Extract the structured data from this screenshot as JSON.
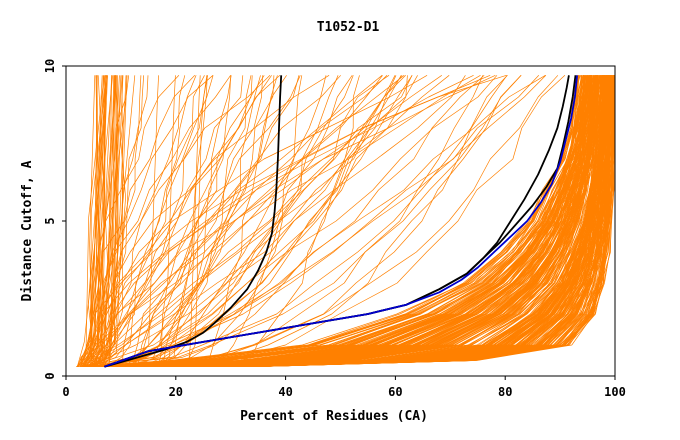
{
  "chart_data": {
    "type": "line",
    "title": "T1052-D1",
    "xlabel": "Percent of Residues (CA)",
    "ylabel": "Distance Cutoff, A",
    "xlim": [
      0,
      100
    ],
    "ylim": [
      0,
      10
    ],
    "x_ticks": [
      "0",
      "20",
      "40",
      "60",
      "80",
      "100"
    ],
    "y_ticks": [
      "0",
      "5",
      "10"
    ],
    "colors": {
      "background_models": "#ff8000",
      "highlight_black": "#000000",
      "highlight_blue": "#0000cc"
    },
    "band_models": {
      "count": 340,
      "color": "#ff8000",
      "note": "dense cloud of GDT curves from ~2% to ~100% residues",
      "cutoff_levels": [
        0.3,
        0.5,
        1,
        2,
        3,
        4,
        5,
        6,
        7,
        8,
        9,
        9.7
      ],
      "x_lower_envelope": [
        2,
        18,
        42,
        60,
        72,
        79,
        84,
        87,
        90,
        91.5,
        92.5,
        93
      ],
      "x_upper_envelope": [
        35,
        75,
        92,
        96.5,
        98,
        98.8,
        99.2,
        99.5,
        99.6,
        99.7,
        99.8,
        99.8
      ]
    },
    "spread_models": {
      "count": 80,
      "color": "#ff8000",
      "x_at_cutoff_0_3": [
        3,
        30
      ],
      "x_at_cutoff_9_7": [
        5,
        92
      ]
    },
    "series": [
      {
        "name": "model-black-1",
        "color": "#000000",
        "x": [
          7,
          10,
          14,
          18,
          22,
          25,
          27,
          30,
          33,
          35,
          36.5,
          37.5,
          38,
          38.3,
          38.6,
          38.8,
          39,
          39.2
        ],
        "y": [
          0.3,
          0.45,
          0.65,
          0.85,
          1.1,
          1.4,
          1.7,
          2.2,
          2.8,
          3.4,
          4.0,
          4.6,
          5.3,
          6.0,
          7.0,
          8.0,
          9.0,
          9.7
        ]
      },
      {
        "name": "model-black-2",
        "color": "#000000",
        "x": [
          7,
          15,
          25,
          35,
          45,
          55,
          62,
          68,
          73,
          76,
          78.5,
          81,
          83.5,
          86,
          88,
          89.5,
          90.5,
          91.2,
          91.6
        ],
        "y": [
          0.3,
          0.8,
          1.1,
          1.4,
          1.7,
          2.0,
          2.3,
          2.8,
          3.3,
          3.8,
          4.3,
          5.0,
          5.7,
          6.5,
          7.3,
          8.0,
          8.7,
          9.3,
          9.7
        ]
      },
      {
        "name": "model-black-3",
        "color": "#000000",
        "x": [
          7,
          15,
          25,
          35,
          45,
          55,
          62,
          68,
          73,
          76,
          79,
          82,
          85,
          87.5,
          89.5,
          90.5,
          91.5,
          92.3,
          92.8
        ],
        "y": [
          0.3,
          0.8,
          1.1,
          1.4,
          1.7,
          2.0,
          2.3,
          2.8,
          3.3,
          3.8,
          4.3,
          4.9,
          5.5,
          6.1,
          6.7,
          7.4,
          8.2,
          9.0,
          9.7
        ]
      },
      {
        "name": "model-blue",
        "color": "#0000cc",
        "x": [
          7,
          15,
          25,
          35,
          45,
          55,
          62,
          68,
          72,
          75,
          78,
          81,
          84,
          86.5,
          88.5,
          90,
          91,
          92,
          92.7,
          93.1
        ],
        "y": [
          0.3,
          0.8,
          1.1,
          1.4,
          1.7,
          2.0,
          2.3,
          2.7,
          3.1,
          3.5,
          4.0,
          4.5,
          5.0,
          5.6,
          6.2,
          6.9,
          7.6,
          8.3,
          9.0,
          9.7
        ]
      }
    ]
  }
}
